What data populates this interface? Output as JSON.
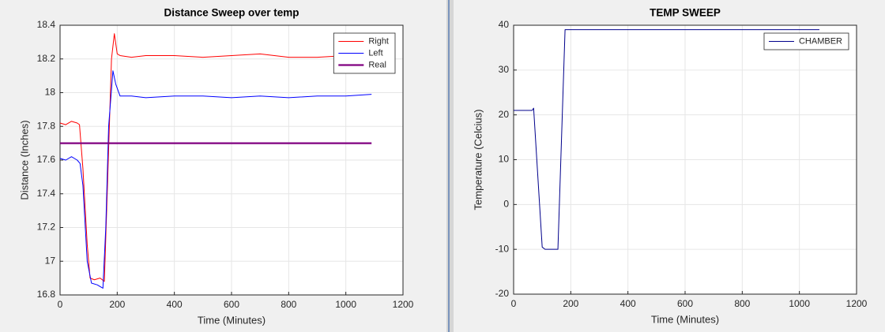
{
  "chart_data": [
    {
      "type": "line",
      "title": "Distance Sweep over temp",
      "x_label": "Time (Minutes)",
      "y_label": "Distance (Inches)",
      "xlim": [
        0,
        1200
      ],
      "xticks": [
        0,
        200,
        400,
        600,
        800,
        1000,
        1200
      ],
      "ylim": [
        16.8,
        18.4
      ],
      "yticks": [
        16.8,
        17,
        17.2,
        17.4,
        17.6,
        17.8,
        18,
        18.2,
        18.4
      ],
      "grid": true,
      "legend": "northeast",
      "series": [
        {
          "name": "Right",
          "color": "#ff0000",
          "line_width": 1,
          "x": [
            0,
            20,
            40,
            60,
            68,
            80,
            95,
            105,
            120,
            140,
            155,
            165,
            180,
            190,
            200,
            210,
            250,
            300,
            400,
            500,
            600,
            700,
            800,
            900,
            1000,
            1085
          ],
          "values": [
            17.82,
            17.81,
            17.83,
            17.82,
            17.81,
            17.55,
            17.1,
            16.9,
            16.89,
            16.9,
            16.88,
            17.4,
            18.2,
            18.35,
            18.23,
            18.22,
            18.21,
            18.22,
            18.22,
            18.21,
            18.22,
            18.23,
            18.21,
            18.21,
            18.22,
            18.21
          ]
        },
        {
          "name": "Left",
          "color": "#0000ff",
          "line_width": 1,
          "x": [
            0,
            20,
            40,
            60,
            70,
            80,
            95,
            110,
            130,
            150,
            160,
            170,
            185,
            195,
            210,
            250,
            300,
            400,
            500,
            600,
            700,
            800,
            900,
            1000,
            1090
          ],
          "values": [
            17.61,
            17.6,
            17.62,
            17.6,
            17.58,
            17.45,
            17.0,
            16.87,
            16.86,
            16.84,
            17.2,
            17.8,
            18.13,
            18.05,
            17.98,
            17.98,
            17.97,
            17.98,
            17.98,
            17.97,
            17.98,
            17.97,
            17.98,
            17.98,
            17.99
          ]
        },
        {
          "name": "Real",
          "color": "#800080",
          "line_width": 2.2,
          "x": [
            0,
            1090
          ],
          "values": [
            17.7,
            17.7
          ]
        }
      ]
    },
    {
      "type": "line",
      "title": "TEMP SWEEP",
      "x_label": "Time (Minutes)",
      "y_label": "Temperature (Celcius)",
      "xlim": [
        0,
        1200
      ],
      "xticks": [
        0,
        200,
        400,
        600,
        800,
        1000,
        1200
      ],
      "ylim": [
        -20,
        40
      ],
      "yticks": [
        -20,
        -10,
        0,
        10,
        20,
        30,
        40
      ],
      "grid": true,
      "legend": "northeast",
      "series": [
        {
          "name": "CHAMBER",
          "color": "#00008b",
          "line_width": 1,
          "x": [
            0,
            65,
            70,
            100,
            110,
            150,
            155,
            180,
            185,
            1070
          ],
          "values": [
            21,
            21,
            21.5,
            -9.5,
            -10,
            -10,
            -10,
            39,
            39,
            39
          ]
        }
      ]
    }
  ]
}
